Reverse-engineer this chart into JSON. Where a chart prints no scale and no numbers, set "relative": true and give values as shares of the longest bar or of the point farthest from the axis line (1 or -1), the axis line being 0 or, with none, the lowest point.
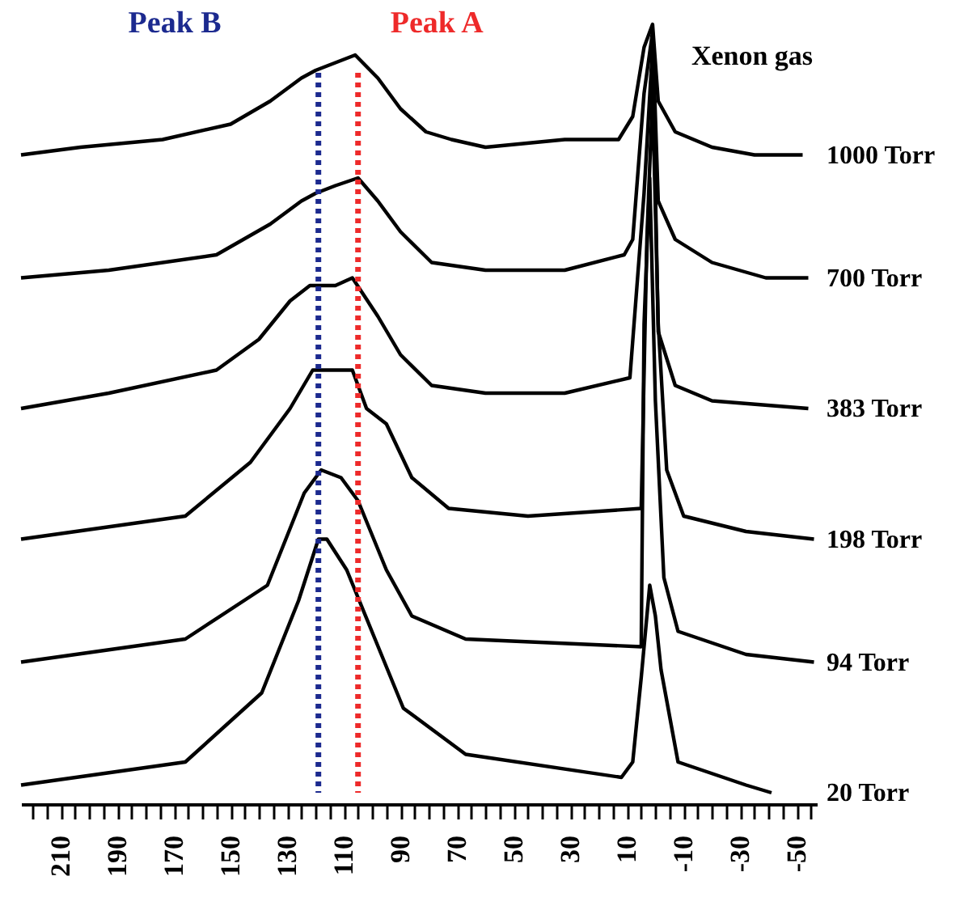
{
  "chart_data": {
    "type": "line",
    "relative": true,
    "grid": false,
    "line_style": "solid",
    "xlim": [
      224,
      -57
    ],
    "xticks": [
      {
        "value": 220,
        "label": null
      },
      {
        "value": 215,
        "label": null
      },
      210,
      {
        "value": 205,
        "label": null
      },
      {
        "value": 200,
        "label": null
      },
      {
        "value": 195,
        "label": null
      },
      190,
      {
        "value": 185,
        "label": null
      },
      {
        "value": 180,
        "label": null
      },
      {
        "value": 175,
        "label": null
      },
      170,
      {
        "value": 165,
        "label": null
      },
      {
        "value": 160,
        "label": null
      },
      {
        "value": 155,
        "label": null
      },
      150,
      {
        "value": 145,
        "label": null
      },
      {
        "value": 140,
        "label": null
      },
      {
        "value": 135,
        "label": null
      },
      130,
      {
        "value": 125,
        "label": null
      },
      {
        "value": 120,
        "label": null
      },
      {
        "value": 115,
        "label": null
      },
      110,
      {
        "value": 105,
        "label": null
      },
      {
        "value": 100,
        "label": null
      },
      {
        "value": 95,
        "label": null
      },
      90,
      {
        "value": 85,
        "label": null
      },
      {
        "value": 80,
        "label": null
      },
      {
        "value": 75,
        "label": null
      },
      70,
      {
        "value": 65,
        "label": null
      },
      {
        "value": 60,
        "label": null
      },
      {
        "value": 55,
        "label": null
      },
      50,
      {
        "value": 45,
        "label": null
      },
      {
        "value": 40,
        "label": null
      },
      {
        "value": 35,
        "label": null
      },
      30,
      {
        "value": 25,
        "label": null
      },
      {
        "value": 20,
        "label": null
      },
      {
        "value": 15,
        "label": null
      },
      10,
      {
        "value": 5,
        "label": null
      },
      {
        "value": 0,
        "label": null
      },
      {
        "value": -5,
        "label": null
      },
      -10,
      {
        "value": -15,
        "label": null
      },
      {
        "value": -20,
        "label": null
      },
      {
        "value": -25,
        "label": null
      },
      -30,
      {
        "value": -35,
        "label": null
      },
      {
        "value": -40,
        "label": null
      },
      {
        "value": -45,
        "label": null
      },
      -50,
      {
        "value": -55,
        "label": null
      }
    ],
    "series": [
      {
        "name": "1000 Torr",
        "color": "#000000",
        "x": [
          224,
          203,
          174,
          150,
          136,
          125,
          120,
          113,
          106,
          98,
          90,
          81,
          72,
          60,
          32,
          13,
          8,
          4,
          1,
          -1,
          -7,
          -20,
          -35,
          -52
        ],
        "values": [
          0.83,
          0.84,
          0.85,
          0.87,
          0.9,
          0.93,
          0.94,
          0.95,
          0.96,
          0.93,
          0.89,
          0.86,
          0.85,
          0.84,
          0.85,
          0.85,
          0.88,
          0.97,
          1.0,
          0.9,
          0.86,
          0.84,
          0.83,
          0.83
        ]
      },
      {
        "name": "700 Torr",
        "color": "#000000",
        "x": [
          224,
          193,
          155,
          136,
          125,
          120,
          113,
          105,
          98,
          90,
          79,
          60,
          32,
          11,
          8,
          4,
          1,
          -1,
          -7,
          -20,
          -39,
          -54
        ],
        "values": [
          0.67,
          0.68,
          0.7,
          0.74,
          0.77,
          0.78,
          0.79,
          0.8,
          0.77,
          0.73,
          0.69,
          0.68,
          0.68,
          0.7,
          0.72,
          0.91,
          0.99,
          0.77,
          0.72,
          0.69,
          0.67,
          0.67
        ]
      },
      {
        "name": "383 Torr",
        "color": "#000000",
        "x": [
          224,
          193,
          155,
          140,
          129,
          122,
          113,
          107,
          98,
          90,
          79,
          60,
          32,
          9,
          4,
          1,
          -1,
          -7,
          -20,
          -54
        ],
        "values": [
          0.5,
          0.52,
          0.55,
          0.59,
          0.64,
          0.66,
          0.66,
          0.67,
          0.62,
          0.57,
          0.53,
          0.52,
          0.52,
          0.54,
          0.78,
          0.97,
          0.6,
          0.53,
          0.51,
          0.5
        ]
      },
      {
        "name": "198 Torr",
        "color": "#000000",
        "x": [
          224,
          166,
          143,
          133,
          129,
          121,
          107,
          102,
          95,
          86,
          73,
          45,
          5,
          3,
          1,
          -1,
          -4,
          -10,
          -32,
          -56
        ],
        "values": [
          0.33,
          0.36,
          0.43,
          0.48,
          0.5,
          0.55,
          0.55,
          0.5,
          0.48,
          0.41,
          0.37,
          0.36,
          0.37,
          0.72,
          0.91,
          0.61,
          0.42,
          0.36,
          0.34,
          0.33
        ]
      },
      {
        "name": "94 Torr",
        "color": "#000000",
        "x": [
          224,
          166,
          137,
          124,
          118,
          111,
          105,
          95,
          86,
          67,
          5,
          4,
          2,
          0,
          -3,
          -8,
          -32,
          -56
        ],
        "values": [
          0.17,
          0.2,
          0.27,
          0.39,
          0.42,
          0.41,
          0.38,
          0.29,
          0.23,
          0.2,
          0.19,
          0.61,
          0.8,
          0.51,
          0.28,
          0.21,
          0.18,
          0.17
        ]
      },
      {
        "name": "20 Torr",
        "color": "#000000",
        "x": [
          224,
          166,
          139,
          126,
          119,
          116,
          109,
          99,
          89,
          67,
          12,
          8,
          5,
          2,
          0,
          -2,
          -8,
          -32,
          -41
        ],
        "values": [
          0.01,
          0.04,
          0.13,
          0.25,
          0.33,
          0.33,
          0.29,
          0.2,
          0.11,
          0.05,
          0.02,
          0.04,
          0.15,
          0.27,
          0.23,
          0.16,
          0.04,
          0.01,
          0.0
        ]
      }
    ],
    "ref_lines": [
      {
        "axis": "x",
        "value": 119,
        "label": "Peak B",
        "color": "#1c2a8f",
        "line_style": "dotted"
      },
      {
        "axis": "x",
        "value": 105,
        "label": "Peak A",
        "color": "#ee2a2a",
        "line_style": "dotted"
      }
    ],
    "annotations": [
      {
        "text": "Xenon gas",
        "x": 1,
        "y": 1.0
      }
    ]
  }
}
